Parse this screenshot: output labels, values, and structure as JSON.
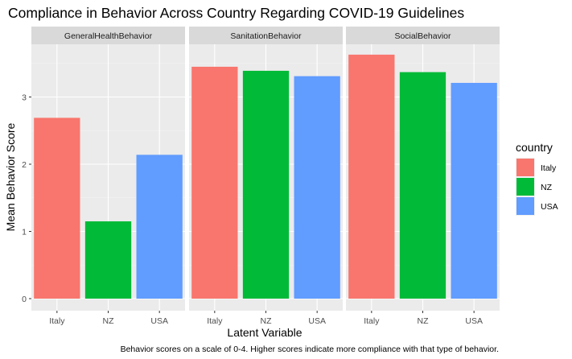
{
  "chart_data": {
    "type": "bar",
    "title": "Compliance in Behavior Across Country Regarding COVID-19 Guidelines",
    "xlabel": "Latent Variable",
    "ylabel": "Mean Behavior Score",
    "caption": "Behavior scores on a scale of 0-4. Higher scores indicate more compliance with that type of behavior.",
    "categories": [
      "Italy",
      "NZ",
      "USA"
    ],
    "ylim": [
      0,
      3.8
    ],
    "yticks": [
      0,
      1,
      2,
      3
    ],
    "grid": true,
    "legend": {
      "title": "country",
      "placement": "right",
      "entries": [
        {
          "label": "Italy",
          "color": "#F8766D"
        },
        {
          "label": "NZ",
          "color": "#00BA38"
        },
        {
          "label": "USA",
          "color": "#619CFF"
        }
      ]
    },
    "facets": [
      {
        "name": "GeneralHealthBehavior",
        "values": [
          2.69,
          1.15,
          2.14
        ]
      },
      {
        "name": "SanitationBehavior",
        "values": [
          3.45,
          3.39,
          3.31
        ]
      },
      {
        "name": "SocialBehavior",
        "values": [
          3.63,
          3.37,
          3.21
        ]
      }
    ]
  },
  "colors": {
    "panel_bg": "#EBEBEB",
    "strip_bg": "#D9D9D9",
    "grid_major": "#FFFFFF"
  }
}
